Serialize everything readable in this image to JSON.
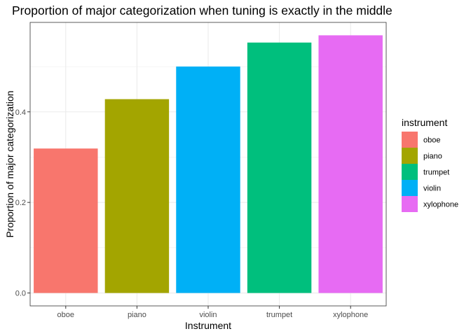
{
  "chart_data": {
    "type": "bar",
    "title": "Proportion of major categorization when tuning is exactly in the middle",
    "xlabel": "Instrument",
    "ylabel": "Proportion of major categorization",
    "categories": [
      "oboe",
      "piano",
      "violin",
      "trumpet",
      "xylophone"
    ],
    "values": [
      0.319,
      0.428,
      0.5,
      0.553,
      0.569
    ],
    "colors": [
      "#F8766D",
      "#A3A500",
      "#00B0F6",
      "#00BF7D",
      "#E76BF3"
    ],
    "ylim": [
      -0.0285,
      0.5975
    ],
    "yticks": [
      0.0,
      0.2,
      0.4
    ],
    "ytick_labels": [
      "0.0",
      "0.2",
      "0.4"
    ],
    "grid": true,
    "legend": {
      "title": "instrument",
      "position": "right",
      "items": [
        {
          "label": "oboe",
          "color": "#F8766D"
        },
        {
          "label": "piano",
          "color": "#A3A500"
        },
        {
          "label": "trumpet",
          "color": "#00BF7D"
        },
        {
          "label": "violin",
          "color": "#00B0F6"
        },
        {
          "label": "xylophone",
          "color": "#E76BF3"
        }
      ]
    }
  }
}
